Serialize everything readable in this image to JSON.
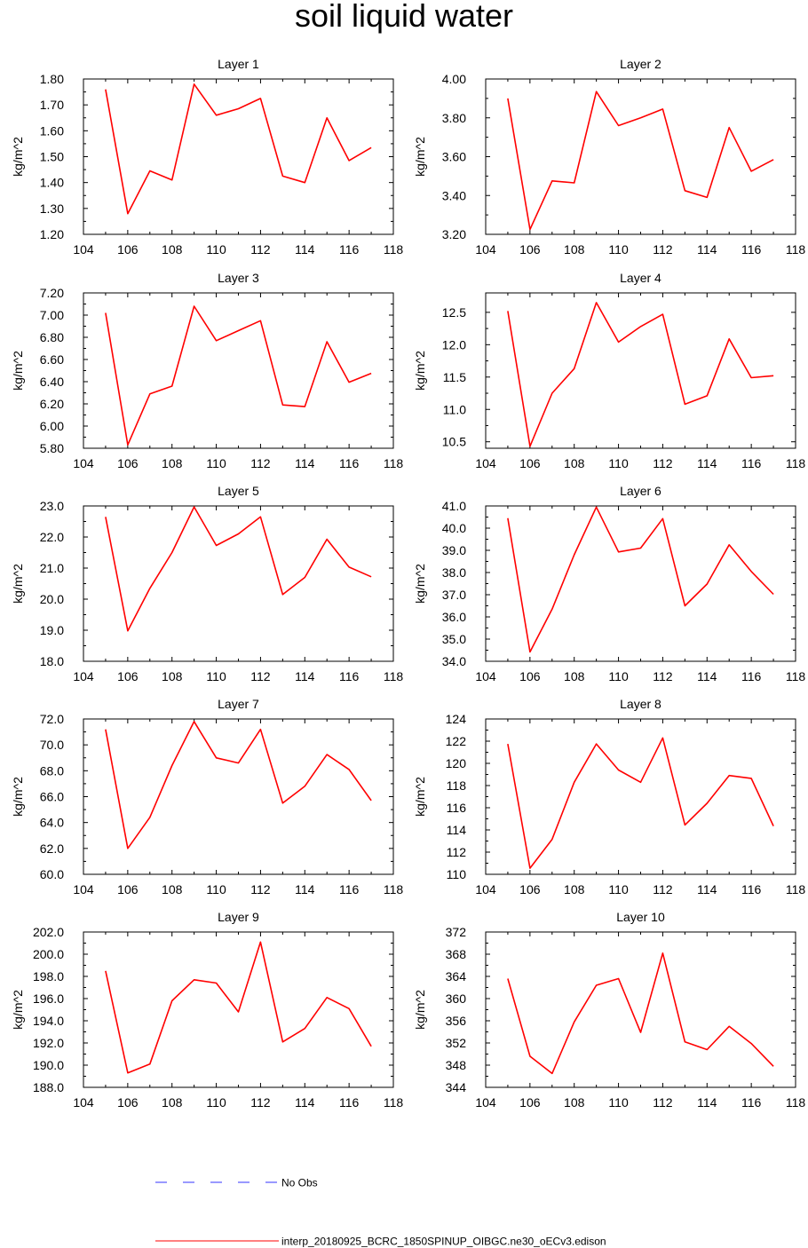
{
  "page": {
    "title": "soil liquid water"
  },
  "legend": {
    "entries": [
      {
        "label": "No Obs",
        "color": "#3333ff",
        "style": "dashed"
      },
      {
        "label": "interp_20180925_BCRC_1850SPINUP_OIBGC.ne30_oECv3.edison",
        "color": "#ff0000",
        "style": "solid"
      }
    ]
  },
  "chart_data": [
    {
      "type": "line",
      "title": "Layer 1",
      "ylabel": "kg/m^2",
      "xlim": [
        104,
        118
      ],
      "xticks": [
        "104",
        "106",
        "108",
        "110",
        "112",
        "114",
        "116",
        "118"
      ],
      "ylim": [
        1.2,
        1.8
      ],
      "yticks": [
        "1.20",
        "1.30",
        "1.40",
        "1.50",
        "1.60",
        "1.70",
        "1.80"
      ],
      "x": [
        105,
        106,
        107,
        108,
        109,
        110,
        111,
        112,
        113,
        114,
        115,
        116,
        117
      ],
      "series": [
        {
          "color": "#ff0000",
          "values": [
            1.76,
            1.28,
            1.445,
            1.41,
            1.78,
            1.66,
            1.685,
            1.725,
            1.425,
            1.4,
            1.65,
            1.485,
            1.535
          ]
        }
      ]
    },
    {
      "type": "line",
      "title": "Layer 2",
      "ylabel": "kg/m^2",
      "xlim": [
        104,
        118
      ],
      "xticks": [
        "104",
        "106",
        "108",
        "110",
        "112",
        "114",
        "116",
        "118"
      ],
      "ylim": [
        3.2,
        4.0
      ],
      "yticks": [
        "3.20",
        "3.40",
        "3.60",
        "3.80",
        "4.00"
      ],
      "x": [
        105,
        106,
        107,
        108,
        109,
        110,
        111,
        112,
        113,
        114,
        115,
        116,
        117
      ],
      "series": [
        {
          "color": "#ff0000",
          "values": [
            3.9,
            3.225,
            3.475,
            3.465,
            3.935,
            3.76,
            3.8,
            3.845,
            3.425,
            3.39,
            3.75,
            3.525,
            3.585
          ]
        }
      ]
    },
    {
      "type": "line",
      "title": "Layer 3",
      "ylabel": "kg/m^2",
      "xlim": [
        104,
        118
      ],
      "xticks": [
        "104",
        "106",
        "108",
        "110",
        "112",
        "114",
        "116",
        "118"
      ],
      "ylim": [
        5.8,
        7.2
      ],
      "yticks": [
        "5.80",
        "6.00",
        "6.20",
        "6.40",
        "6.60",
        "6.80",
        "7.00",
        "7.20"
      ],
      "x": [
        105,
        106,
        107,
        108,
        109,
        110,
        111,
        112,
        113,
        114,
        115,
        116,
        117
      ],
      "series": [
        {
          "color": "#ff0000",
          "values": [
            7.02,
            5.83,
            6.29,
            6.36,
            7.08,
            6.77,
            6.86,
            6.95,
            6.19,
            6.175,
            6.76,
            6.395,
            6.475
          ]
        }
      ]
    },
    {
      "type": "line",
      "title": "Layer 4",
      "ylabel": "kg/m^2",
      "xlim": [
        104,
        118
      ],
      "xticks": [
        "104",
        "106",
        "108",
        "110",
        "112",
        "114",
        "116",
        "118"
      ],
      "ylim": [
        10.4,
        12.8
      ],
      "yticks": [
        "10.5",
        "11.0",
        "11.5",
        "12.0",
        "12.5"
      ],
      "x": [
        105,
        106,
        107,
        108,
        109,
        110,
        111,
        112,
        113,
        114,
        115,
        116,
        117
      ],
      "series": [
        {
          "color": "#ff0000",
          "values": [
            12.52,
            10.43,
            11.25,
            11.63,
            12.65,
            12.04,
            12.28,
            12.47,
            11.08,
            11.21,
            12.09,
            11.49,
            11.52
          ]
        }
      ]
    },
    {
      "type": "line",
      "title": "Layer 5",
      "ylabel": "kg/m^2",
      "xlim": [
        104,
        118
      ],
      "xticks": [
        "104",
        "106",
        "108",
        "110",
        "112",
        "114",
        "116",
        "118"
      ],
      "ylim": [
        18.0,
        23.0
      ],
      "yticks": [
        "18.0",
        "19.0",
        "20.0",
        "21.0",
        "22.0",
        "23.0"
      ],
      "x": [
        105,
        106,
        107,
        108,
        109,
        110,
        111,
        112,
        113,
        114,
        115,
        116,
        117
      ],
      "series": [
        {
          "color": "#ff0000",
          "values": [
            22.65,
            18.98,
            20.35,
            21.5,
            22.97,
            21.73,
            22.1,
            22.65,
            20.15,
            20.7,
            21.93,
            21.03,
            20.72
          ]
        }
      ]
    },
    {
      "type": "line",
      "title": "Layer 6",
      "ylabel": "kg/m^2",
      "xlim": [
        104,
        118
      ],
      "xticks": [
        "104",
        "106",
        "108",
        "110",
        "112",
        "114",
        "116",
        "118"
      ],
      "ylim": [
        34.0,
        41.0
      ],
      "yticks": [
        "34.0",
        "35.0",
        "36.0",
        "37.0",
        "38.0",
        "39.0",
        "40.0",
        "41.0"
      ],
      "x": [
        105,
        106,
        107,
        108,
        109,
        110,
        111,
        112,
        113,
        114,
        115,
        116,
        117
      ],
      "series": [
        {
          "color": "#ff0000",
          "values": [
            40.45,
            34.42,
            36.35,
            38.8,
            40.95,
            38.93,
            39.1,
            40.43,
            36.5,
            37.48,
            39.25,
            38.05,
            37.02
          ]
        }
      ]
    },
    {
      "type": "line",
      "title": "Layer 7",
      "ylabel": "kg/m^2",
      "xlim": [
        104,
        118
      ],
      "xticks": [
        "104",
        "106",
        "108",
        "110",
        "112",
        "114",
        "116",
        "118"
      ],
      "ylim": [
        60.0,
        72.0
      ],
      "yticks": [
        "60.0",
        "62.0",
        "64.0",
        "66.0",
        "68.0",
        "70.0",
        "72.0"
      ],
      "x": [
        105,
        106,
        107,
        108,
        109,
        110,
        111,
        112,
        113,
        114,
        115,
        116,
        117
      ],
      "series": [
        {
          "color": "#ff0000",
          "values": [
            71.2,
            62.0,
            64.4,
            68.4,
            71.8,
            69.0,
            68.6,
            71.2,
            65.5,
            66.8,
            69.25,
            68.1,
            65.7
          ]
        }
      ]
    },
    {
      "type": "line",
      "title": "Layer 8",
      "ylabel": "kg/m^2",
      "xlim": [
        104,
        118
      ],
      "xticks": [
        "104",
        "106",
        "108",
        "110",
        "112",
        "114",
        "116",
        "118"
      ],
      "ylim": [
        110,
        124
      ],
      "yticks": [
        "110",
        "112",
        "114",
        "116",
        "118",
        "120",
        "122",
        "124"
      ],
      "x": [
        105,
        106,
        107,
        108,
        109,
        110,
        111,
        112,
        113,
        114,
        115,
        116,
        117
      ],
      "series": [
        {
          "color": "#ff0000",
          "values": [
            121.75,
            110.55,
            113.15,
            118.3,
            121.75,
            119.4,
            118.3,
            122.3,
            114.45,
            116.4,
            118.9,
            118.65,
            114.35
          ]
        }
      ]
    },
    {
      "type": "line",
      "title": "Layer 9",
      "ylabel": "kg/m^2",
      "xlim": [
        104,
        118
      ],
      "xticks": [
        "104",
        "106",
        "108",
        "110",
        "112",
        "114",
        "116",
        "118"
      ],
      "ylim": [
        188.0,
        202.0
      ],
      "yticks": [
        "188.0",
        "190.0",
        "192.0",
        "194.0",
        "196.0",
        "198.0",
        "200.0",
        "202.0"
      ],
      "x": [
        105,
        106,
        107,
        108,
        109,
        110,
        111,
        112,
        113,
        114,
        115,
        116,
        117
      ],
      "series": [
        {
          "color": "#ff0000",
          "values": [
            198.5,
            189.3,
            190.1,
            195.8,
            197.7,
            197.4,
            194.8,
            201.1,
            192.1,
            193.3,
            196.1,
            195.1,
            191.7
          ]
        }
      ]
    },
    {
      "type": "line",
      "title": "Layer 10",
      "ylabel": "kg/m^2",
      "xlim": [
        104,
        118
      ],
      "xticks": [
        "104",
        "106",
        "108",
        "110",
        "112",
        "114",
        "116",
        "118"
      ],
      "ylim": [
        344,
        372
      ],
      "yticks": [
        "344",
        "348",
        "352",
        "356",
        "360",
        "364",
        "368",
        "372"
      ],
      "x": [
        105,
        106,
        107,
        108,
        109,
        110,
        111,
        112,
        113,
        114,
        115,
        116,
        117
      ],
      "series": [
        {
          "color": "#ff0000",
          "values": [
            363.6,
            349.6,
            346.5,
            355.8,
            362.4,
            363.6,
            353.9,
            368.2,
            352.2,
            350.8,
            355.0,
            351.9,
            347.8
          ]
        }
      ]
    }
  ]
}
